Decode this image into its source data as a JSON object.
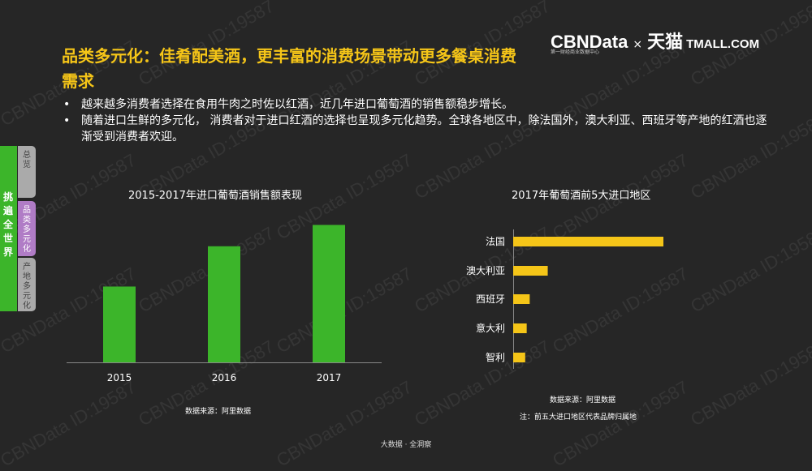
{
  "watermark": "CBNData ID:19587",
  "title": "品类多元化：佳肴配美酒，更丰富的消费场景带动更多餐桌消费需求",
  "brand": {
    "cbndata": "CBNData",
    "cbndata_sub": "第一财经商业数据中心",
    "x": "×",
    "tmall_cn": "天猫",
    "tmall_en": "TMALL.COM"
  },
  "bullets": [
    "越来越多消费者选择在食用牛肉之时佐以红酒，近几年进口葡萄酒的销售额稳步增长。",
    "随着进口生鲜的多元化， 消费者对于进口红酒的选择也呈现多元化趋势。全球各地区中，除法国外，澳大利亚、西班牙等产地的红酒也逐渐受到消费者欢迎。"
  ],
  "sidebar": {
    "section_label": "挑遍全世界",
    "nav": [
      "总览",
      "品类多元化",
      "产地多元化"
    ],
    "active_index": 1,
    "colors": {
      "tab": "#3cb52a",
      "nav": "#aaaaaa",
      "nav_active": "#b07cc6"
    }
  },
  "chart_data": [
    {
      "type": "bar",
      "title": "2015-2017年进口葡萄酒销售额表现",
      "categories": [
        "2015",
        "2016",
        "2017"
      ],
      "values": [
        32,
        49,
        58
      ],
      "ylim": [
        0,
        65
      ],
      "axes_values_shown": false,
      "color": "#3cb52a",
      "source": "数据来源：阿里数据"
    },
    {
      "type": "bar",
      "orientation": "horizontal",
      "title": "2017年葡萄酒前5大进口地区",
      "categories": [
        "法国",
        "澳大利亚",
        "西班牙",
        "意大利",
        "智利"
      ],
      "values": [
        100,
        23,
        11,
        9,
        8
      ],
      "xlim": [
        0,
        100
      ],
      "axes_values_shown": false,
      "color": "#f5c518",
      "source": "数据来源：阿里数据",
      "note": "注：前五大进口地区代表品牌归属地"
    }
  ],
  "footer": "大数据 · 全洞察"
}
